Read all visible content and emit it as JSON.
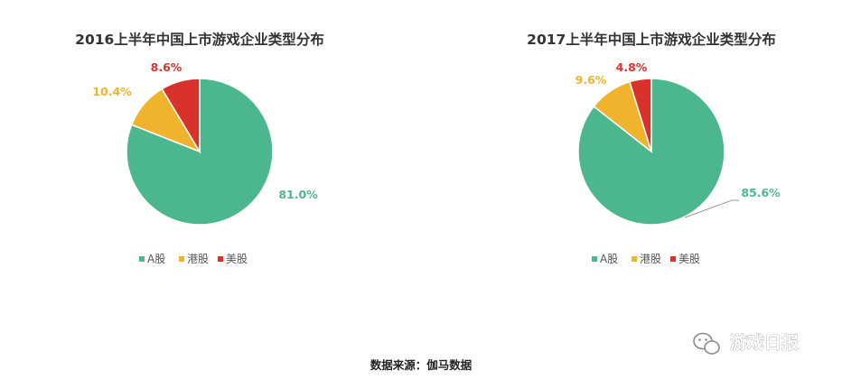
{
  "colors": {
    "a_share": "#4cb78e",
    "hk_share": "#f0b32e",
    "us_share": "#d9322c"
  },
  "chart_data": [
    {
      "type": "pie",
      "title": "2016上半年中国上市游戏企业类型分布",
      "slices": [
        {
          "name": "A股",
          "value": 81.0,
          "label": "81.0%",
          "color": "#4cb78e"
        },
        {
          "name": "港股",
          "value": 10.4,
          "label": "10.4%",
          "color": "#f0b32e"
        },
        {
          "name": "美股",
          "value": 8.6,
          "label": "8.6%",
          "color": "#d9322c"
        }
      ],
      "legend": [
        "A股",
        "港股",
        "美股"
      ],
      "legend_position": "bottom"
    },
    {
      "type": "pie",
      "title": "2017上半年中国上市游戏企业类型分布",
      "slices": [
        {
          "name": "A股",
          "value": 85.6,
          "label": "85.6%",
          "color": "#4cb78e"
        },
        {
          "name": "港股",
          "value": 9.6,
          "label": "9.6%",
          "color": "#f0b32e"
        },
        {
          "name": "美股",
          "value": 4.8,
          "label": "4.8%",
          "color": "#d9322c"
        }
      ],
      "legend": [
        "A股",
        "港股",
        "美股"
      ],
      "legend_position": "bottom"
    }
  ],
  "source": "数据来源：伽马数据",
  "watermark": {
    "icon": "wechat-icon",
    "text": "游戏日报"
  }
}
